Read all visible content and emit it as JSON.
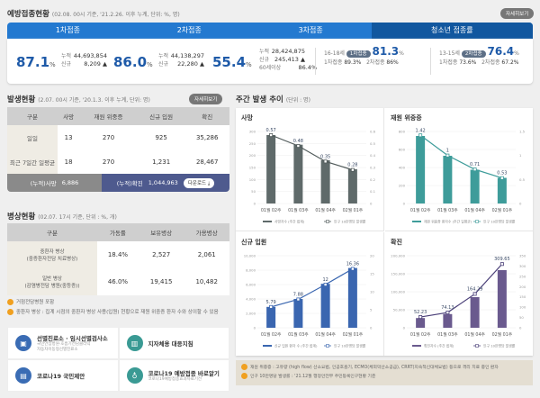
{
  "vaccination": {
    "title": "예방접종현황",
    "subtitle": "(02.08. 00시 기준, '21.2.26. 이후 누계, 단위: %, 명)",
    "detail_button": "자세히보기",
    "tabs": [
      "1차접종",
      "2차접종",
      "3차접종",
      "청소년 접종률"
    ],
    "dose1": {
      "rate": "87.1",
      "unit": "%",
      "cum_label": "누적",
      "cum": "44,693,854",
      "new_label": "신규",
      "new": "8,209 ▲"
    },
    "dose2": {
      "rate": "86.0",
      "unit": "%",
      "cum_label": "누적",
      "cum": "44,138,297",
      "new_label": "신규",
      "new": "22,280 ▲"
    },
    "dose3": {
      "rate": "55.4",
      "unit": "%",
      "cum_label": "누적",
      "cum": "28,424,875",
      "new_label": "신규",
      "new": "245,413 ▲",
      "age_label": "60세이상",
      "age_rate": "86.4%"
    },
    "teen1": {
      "age": "16-18세",
      "pill": "1차접종",
      "rate": "81.3",
      "unit": "%",
      "d1_label": "1차접종",
      "d1": "89.3%",
      "d2_label": "2차접종",
      "d2": "86%"
    },
    "teen2": {
      "age": "13-15세",
      "pill": "2차접종",
      "rate": "76.4",
      "unit": "%",
      "d1_label": "1차접종",
      "d1": "73.6%",
      "d2_label": "2차접종",
      "d2": "67.2%"
    }
  },
  "occurrence": {
    "title": "발생현황",
    "subtitle": "(2.07. 00시 기준, '20.1.3. 이후 누계, 단위: 명)",
    "detail_button": "자세히보기",
    "headers": [
      "구분",
      "사망",
      "재원 위중증",
      "신규 입원",
      "확진"
    ],
    "rows": [
      [
        "일일",
        "13",
        "270",
        "925",
        "35,286"
      ],
      [
        "최근 7일간 일평균",
        "18",
        "270",
        "1,231",
        "28,467"
      ]
    ],
    "cum_death_label": "(누적)사망",
    "cum_death": "6,886",
    "cum_conf_label": "(누적)확진",
    "cum_conf": "1,044,963",
    "download": "다운로드 ⤓"
  },
  "beds": {
    "title": "병상현황",
    "subtitle": "(02.07. 17시 기준, 단위 : %, 개)",
    "headers": [
      "구분",
      "가동률",
      "보유병상",
      "가용병상"
    ],
    "rows": [
      [
        "중환자 병상",
        "(중증환자전담 치료병상)",
        "18.4%",
        "2,527",
        "2,061"
      ],
      [
        "일반 병상",
        "(감염병전담 병원(중등증))",
        "46.0%",
        "19,415",
        "10,482"
      ]
    ],
    "notes": [
      "거점전담병원 포함",
      "중환자 병상 : 집계 시점의 중환자 병상 사용(입원) 현황으로 재원 위중증 환자 수와 상이할 수 있음"
    ]
  },
  "links": [
    {
      "title": "선별진료소 · 임시선별검사소",
      "sub": "국민안심병원·호흡기전담클리닉",
      "sub2": "자동차이동형선별진료소",
      "icon": "clipboard-icon",
      "color": "#3a6cb4"
    },
    {
      "title": "지자체용 대응지침",
      "icon": "building-icon",
      "color": "#3a9a94"
    },
    {
      "title": "코로나19 국민제안",
      "icon": "door-icon",
      "color": "#3a6cb4"
    },
    {
      "title": "코로나19 예방접종 바로알기",
      "sub": "코로나19예방접종효과자료기전",
      "icon": "stethoscope-icon",
      "color": "#3a9a94"
    }
  ],
  "weekly": {
    "title": "주간 발생 추이",
    "subtitle": "(단위 : 명)",
    "notes": [
      "재원 위중증 : 고유량 (high flow) 산소요법, 인공호흡기, ECMO(체외막산소공급), CRRT(지속적신대체요법) 등으로 격리 치료 중인 환자",
      "인구 10만명당 발생률 : '21.12월 행정안전부 주민등록인구현황 기준"
    ]
  },
  "chart_data": [
    {
      "type": "bar+line",
      "title": "사망",
      "categories": [
        "01월 02주",
        "01월 03주",
        "01월 04주",
        "02월 01주"
      ],
      "bar_series": {
        "name": "사망자수 (주간 합계)",
        "values": [
          285,
          245,
          180,
          143
        ]
      },
      "line_series": {
        "name": "인구 10만명당 발생률",
        "values": [
          0.57,
          0.48,
          0.35,
          0.28
        ]
      },
      "ylim": [
        0,
        300
      ],
      "yticks": [
        0,
        50,
        100,
        150,
        200,
        250,
        300
      ],
      "y2lim": [
        0,
        0.6
      ],
      "y2ticks": [
        0,
        0.1,
        0.2,
        0.3,
        0.4,
        0.5,
        0.6
      ],
      "color": "#5f6a6a"
    },
    {
      "type": "bar+line",
      "title": "재원 위중증",
      "categories": [
        "01월 02주",
        "01월 03주",
        "01월 04주",
        "02월 01주"
      ],
      "bar_series": {
        "name": "재원 위중증 환자수 (주간 일평균)",
        "values": [
          750,
          530,
          375,
          285
        ]
      },
      "line_series": {
        "name": "인구 10만명당 발생률",
        "values": [
          1.42,
          1,
          0.71,
          0.53
        ]
      },
      "ylim": [
        0,
        800
      ],
      "yticks": [
        0,
        200,
        400,
        600,
        800
      ],
      "y2lim": [
        0,
        1.5
      ],
      "y2ticks": [
        0,
        0.5,
        1,
        1.5
      ],
      "color": "#3e9c9a"
    },
    {
      "type": "bar+line",
      "title": "신규 입원",
      "categories": [
        "01월 02주",
        "01월 03주",
        "01월 04주",
        "02월 01주"
      ],
      "bar_series": {
        "name": "신규 입원 환자 수 (주간 합계)",
        "values": [
          2900,
          4000,
          6100,
          8300
        ]
      },
      "line_series": {
        "name": "인구 10만명당 발생률",
        "values": [
          5.79,
          7.88,
          12,
          16.36
        ]
      },
      "ylim": [
        0,
        10000
      ],
      "yticks": [
        0,
        2000,
        4000,
        6000,
        8000,
        10000
      ],
      "y2lim": [
        0,
        20
      ],
      "y2ticks": [
        0,
        5,
        10,
        15,
        20
      ],
      "color": "#3a66b0"
    },
    {
      "type": "bar+line",
      "title": "확진",
      "categories": [
        "01월 02주",
        "01월 03주",
        "01월 04주",
        "02월 01주"
      ],
      "bar_series": {
        "name": "확진자수 (주간 합계)",
        "values": [
          27000,
          38000,
          85000,
          160000
        ]
      },
      "line_series": {
        "name": "인구 10만명당 발생률",
        "values": [
          52.23,
          74.13,
          164.29,
          309.65
        ]
      },
      "ylim": [
        0,
        200000
      ],
      "yticks": [
        0,
        50000,
        100000,
        150000,
        200000
      ],
      "y2lim": [
        0,
        350
      ],
      "y2ticks": [
        0,
        50,
        100,
        150,
        200,
        250,
        300,
        350
      ],
      "color": "#6a5a8e"
    }
  ]
}
